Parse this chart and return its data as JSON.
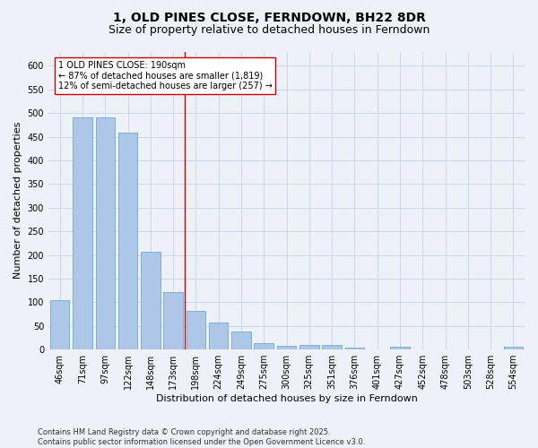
{
  "title_line1": "1, OLD PINES CLOSE, FERNDOWN, BH22 8DR",
  "title_line2": "Size of property relative to detached houses in Ferndown",
  "xlabel": "Distribution of detached houses by size in Ferndown",
  "ylabel": "Number of detached properties",
  "categories": [
    "46sqm",
    "71sqm",
    "97sqm",
    "122sqm",
    "148sqm",
    "173sqm",
    "198sqm",
    "224sqm",
    "249sqm",
    "275sqm",
    "300sqm",
    "325sqm",
    "351sqm",
    "376sqm",
    "401sqm",
    "427sqm",
    "452sqm",
    "478sqm",
    "503sqm",
    "528sqm",
    "554sqm"
  ],
  "values": [
    105,
    490,
    490,
    458,
    207,
    121,
    82,
    57,
    38,
    13,
    8,
    10,
    10,
    3,
    0,
    5,
    0,
    0,
    0,
    0,
    6
  ],
  "bar_color": "#aec6e8",
  "bar_edge_color": "#6aaad4",
  "grid_color": "#c8d4e8",
  "background_color": "#eef2f8",
  "vline_x_index": 6,
  "vline_color": "#cc0000",
  "annotation_text": "1 OLD PINES CLOSE: 190sqm\n← 87% of detached houses are smaller (1,819)\n12% of semi-detached houses are larger (257) →",
  "annotation_box_color": "#ffffff",
  "annotation_box_edge_color": "#cc0000",
  "ylim": [
    0,
    630
  ],
  "yticks": [
    0,
    50,
    100,
    150,
    200,
    250,
    300,
    350,
    400,
    450,
    500,
    550,
    600
  ],
  "footer": "Contains HM Land Registry data © Crown copyright and database right 2025.\nContains public sector information licensed under the Open Government Licence v3.0.",
  "title_fontsize": 10,
  "subtitle_fontsize": 9,
  "axis_label_fontsize": 8,
  "tick_fontsize": 7,
  "annotation_fontsize": 7,
  "footer_fontsize": 6
}
